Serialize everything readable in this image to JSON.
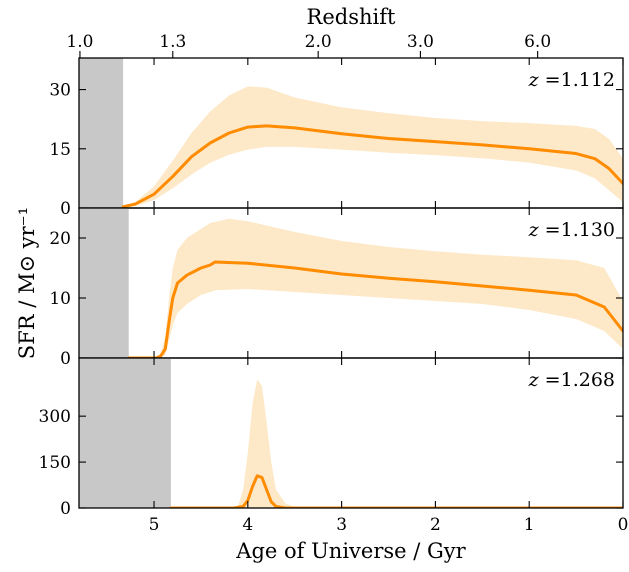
{
  "chart_data": {
    "type": "area",
    "title": "",
    "xlabel": "Age of Universe / Gyr",
    "ylabel": "SFR / M⊙ yr⁻¹",
    "top_axis_label": "Redshift",
    "xlim": [
      5.8,
      0
    ],
    "x_ticks": [
      5,
      4,
      3,
      2,
      1,
      0
    ],
    "top_ticks": [
      {
        "label": "1.0",
        "age": 5.79
      },
      {
        "label": "1.3",
        "age": 4.8
      },
      {
        "label": "2.0",
        "age": 3.25
      },
      {
        "label": "3.0",
        "age": 2.16
      },
      {
        "label": "6.0",
        "age": 0.91
      }
    ],
    "colors": {
      "line": "#ff8c00",
      "band": "#fde8c8",
      "shade": "#c8c8c8"
    },
    "panels": [
      {
        "annotation_z": "z",
        "annotation_value": " =1.112",
        "ylim": [
          0,
          38
        ],
        "y_ticks": [
          0,
          15,
          30
        ],
        "shaded_from_age": 5.8,
        "shaded_to_age": 5.33,
        "median": [
          [
            5.33,
            0.3
          ],
          [
            5.2,
            1.0
          ],
          [
            5.0,
            3.5
          ],
          [
            4.8,
            8.0
          ],
          [
            4.6,
            13.0
          ],
          [
            4.4,
            16.5
          ],
          [
            4.2,
            19.0
          ],
          [
            4.0,
            20.5
          ],
          [
            3.8,
            20.8
          ],
          [
            3.5,
            20.3
          ],
          [
            3.0,
            18.8
          ],
          [
            2.5,
            17.6
          ],
          [
            2.0,
            16.8
          ],
          [
            1.5,
            16.0
          ],
          [
            1.0,
            15.0
          ],
          [
            0.5,
            13.8
          ],
          [
            0.3,
            12.5
          ],
          [
            0.15,
            10.0
          ],
          [
            0.0,
            6.2
          ]
        ],
        "lower": [
          [
            5.33,
            0.1
          ],
          [
            5.2,
            0.5
          ],
          [
            5.0,
            2.0
          ],
          [
            4.8,
            5.0
          ],
          [
            4.6,
            8.5
          ],
          [
            4.4,
            11.5
          ],
          [
            4.2,
            13.5
          ],
          [
            4.0,
            14.8
          ],
          [
            3.8,
            15.5
          ],
          [
            3.5,
            15.5
          ],
          [
            3.0,
            14.8
          ],
          [
            2.5,
            14.0
          ],
          [
            2.0,
            13.4
          ],
          [
            1.5,
            12.6
          ],
          [
            1.0,
            11.5
          ],
          [
            0.5,
            9.5
          ],
          [
            0.3,
            7.5
          ],
          [
            0.15,
            4.5
          ],
          [
            0.0,
            1.5
          ]
        ],
        "upper": [
          [
            5.33,
            0.5
          ],
          [
            5.2,
            1.5
          ],
          [
            5.0,
            5.5
          ],
          [
            4.8,
            12.0
          ],
          [
            4.6,
            19.0
          ],
          [
            4.4,
            24.5
          ],
          [
            4.2,
            28.5
          ],
          [
            4.0,
            30.8
          ],
          [
            3.8,
            30.5
          ],
          [
            3.5,
            28.0
          ],
          [
            3.0,
            25.5
          ],
          [
            2.5,
            24.0
          ],
          [
            2.0,
            22.8
          ],
          [
            1.5,
            22.0
          ],
          [
            1.0,
            21.5
          ],
          [
            0.5,
            20.8
          ],
          [
            0.3,
            20.0
          ],
          [
            0.15,
            17.5
          ],
          [
            0.0,
            12.5
          ]
        ]
      },
      {
        "annotation_z": "z",
        "annotation_value": " =1.130",
        "ylim": [
          0,
          25
        ],
        "y_ticks": [
          0,
          10,
          20
        ],
        "shaded_from_age": 5.8,
        "shaded_to_age": 5.27,
        "median": [
          [
            5.27,
            0.0
          ],
          [
            4.98,
            0.0
          ],
          [
            4.93,
            0.3
          ],
          [
            4.88,
            1.5
          ],
          [
            4.84,
            6.0
          ],
          [
            4.8,
            10.0
          ],
          [
            4.75,
            12.5
          ],
          [
            4.65,
            13.8
          ],
          [
            4.5,
            15.0
          ],
          [
            4.4,
            15.5
          ],
          [
            4.35,
            16.0
          ],
          [
            4.0,
            15.8
          ],
          [
            3.5,
            15.0
          ],
          [
            3.0,
            14.0
          ],
          [
            2.5,
            13.3
          ],
          [
            2.0,
            12.7
          ],
          [
            1.5,
            12.0
          ],
          [
            1.0,
            11.3
          ],
          [
            0.5,
            10.5
          ],
          [
            0.2,
            8.5
          ],
          [
            0.0,
            4.5
          ]
        ],
        "lower": [
          [
            5.27,
            0.0
          ],
          [
            4.98,
            0.0
          ],
          [
            4.93,
            0.1
          ],
          [
            4.88,
            0.5
          ],
          [
            4.84,
            3.0
          ],
          [
            4.8,
            5.5
          ],
          [
            4.75,
            7.5
          ],
          [
            4.65,
            9.0
          ],
          [
            4.5,
            10.5
          ],
          [
            4.4,
            11.0
          ],
          [
            4.35,
            11.3
          ],
          [
            4.0,
            11.5
          ],
          [
            3.5,
            11.0
          ],
          [
            3.0,
            10.5
          ],
          [
            2.5,
            10.0
          ],
          [
            2.0,
            9.5
          ],
          [
            1.5,
            9.0
          ],
          [
            1.0,
            8.0
          ],
          [
            0.5,
            6.5
          ],
          [
            0.2,
            4.5
          ],
          [
            0.0,
            1.5
          ]
        ],
        "upper": [
          [
            5.27,
            0.0
          ],
          [
            4.98,
            0.0
          ],
          [
            4.93,
            0.8
          ],
          [
            4.88,
            3.5
          ],
          [
            4.84,
            10.0
          ],
          [
            4.8,
            15.0
          ],
          [
            4.75,
            18.0
          ],
          [
            4.65,
            20.0
          ],
          [
            4.5,
            21.5
          ],
          [
            4.4,
            22.5
          ],
          [
            4.2,
            23.2
          ],
          [
            4.0,
            22.8
          ],
          [
            3.5,
            21.0
          ],
          [
            3.0,
            19.5
          ],
          [
            2.5,
            18.5
          ],
          [
            2.0,
            17.8
          ],
          [
            1.5,
            17.2
          ],
          [
            1.0,
            16.8
          ],
          [
            0.5,
            16.3
          ],
          [
            0.2,
            15.0
          ],
          [
            0.0,
            9.5
          ]
        ]
      },
      {
        "annotation_z": "z",
        "annotation_value": " =1.268",
        "ylim": [
          0,
          490
        ],
        "y_ticks": [
          0,
          150,
          300
        ],
        "shaded_from_age": 5.8,
        "shaded_to_age": 4.82,
        "median": [
          [
            4.82,
            0
          ],
          [
            4.15,
            0
          ],
          [
            4.05,
            5
          ],
          [
            4.0,
            25
          ],
          [
            3.95,
            70
          ],
          [
            3.9,
            105
          ],
          [
            3.85,
            100
          ],
          [
            3.8,
            60
          ],
          [
            3.75,
            20
          ],
          [
            3.7,
            5
          ],
          [
            3.6,
            0
          ],
          [
            0.0,
            0
          ]
        ],
        "lower": [
          [
            4.82,
            0
          ],
          [
            0.0,
            0
          ]
        ],
        "upper": [
          [
            4.82,
            0
          ],
          [
            4.15,
            0
          ],
          [
            4.1,
            10
          ],
          [
            4.05,
            60
          ],
          [
            4.0,
            180
          ],
          [
            3.95,
            340
          ],
          [
            3.9,
            420
          ],
          [
            3.85,
            400
          ],
          [
            3.8,
            280
          ],
          [
            3.75,
            150
          ],
          [
            3.7,
            60
          ],
          [
            3.6,
            15
          ],
          [
            3.5,
            3
          ],
          [
            3.4,
            0
          ],
          [
            0.0,
            0
          ]
        ]
      }
    ]
  }
}
